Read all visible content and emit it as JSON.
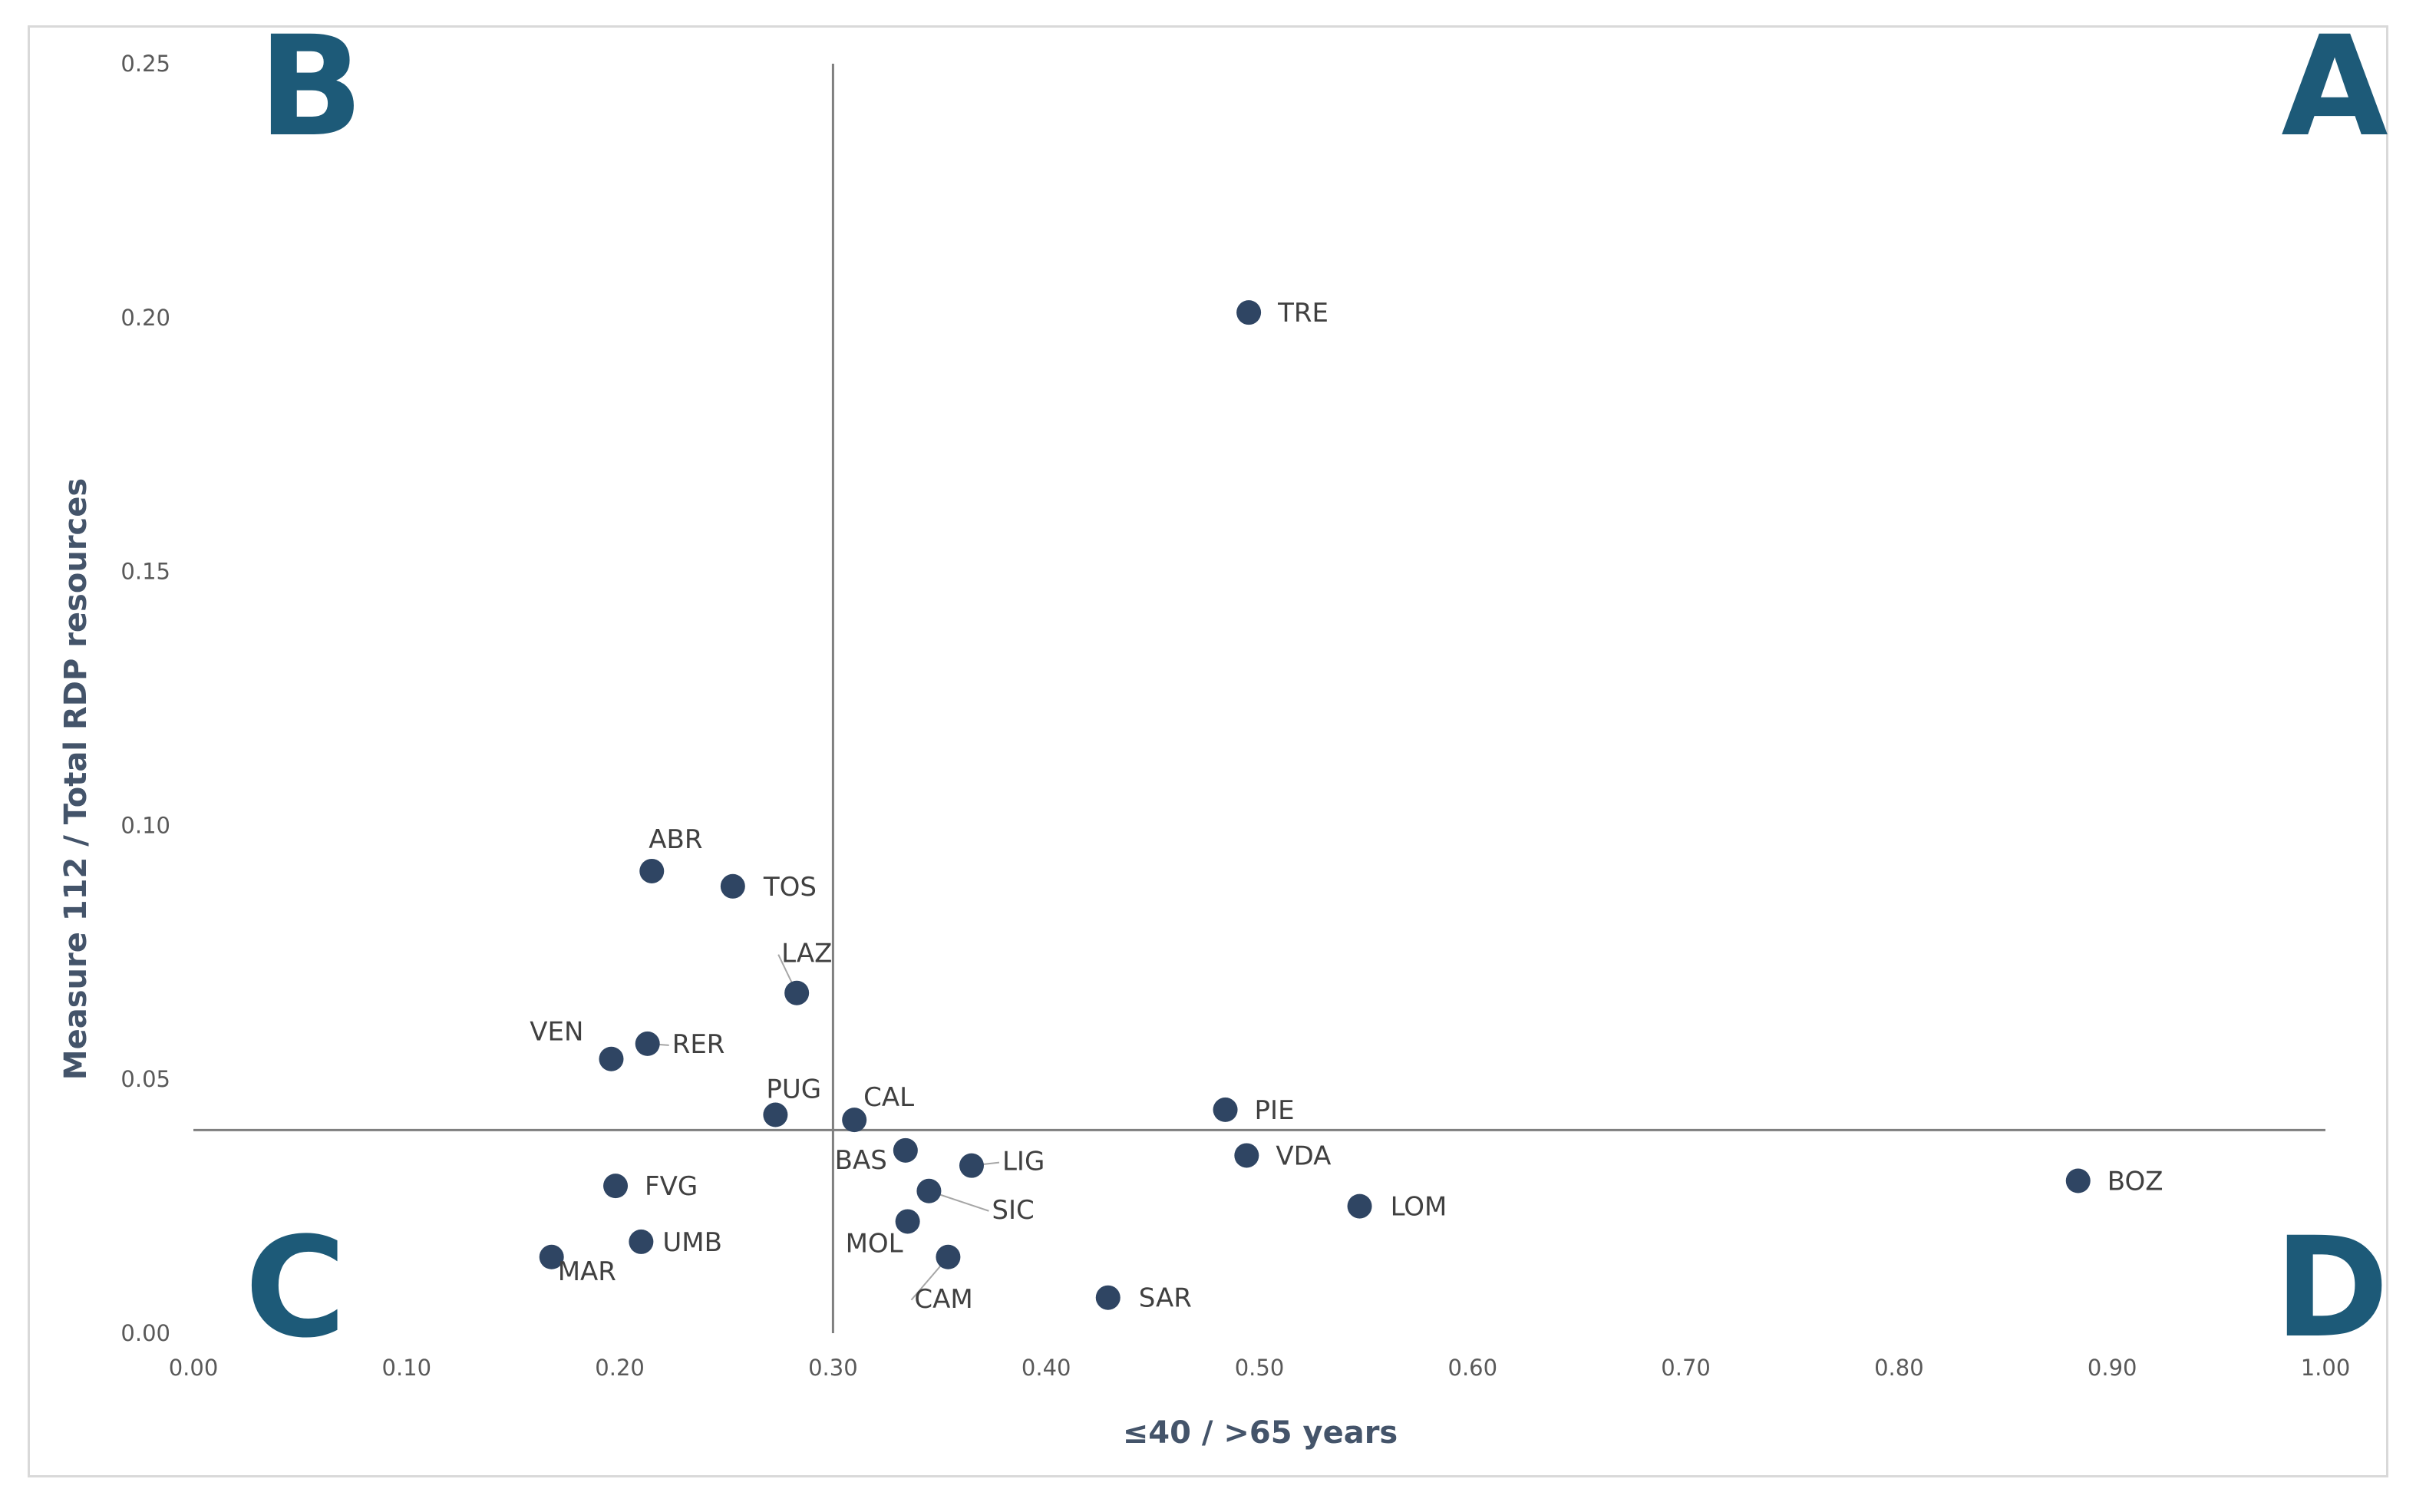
{
  "colors": {
    "point": "#2f4563",
    "divider": "#7f7f7f",
    "quadrant_letter": "#1d5a78",
    "axis_title": "#44546a",
    "tick": "#595959",
    "label": "#404040"
  },
  "chart_data": {
    "type": "scatter",
    "title": "",
    "xlabel": "≤40 / >65 years",
    "ylabel": "Measure 112 / Total RDP resources",
    "xlim": [
      0.0,
      1.0
    ],
    "ylim": [
      0.0,
      0.25
    ],
    "x_ticks": [
      "0.00",
      "0.10",
      "0.20",
      "0.30",
      "0.40",
      "0.50",
      "0.60",
      "0.70",
      "0.80",
      "0.90",
      "1.00"
    ],
    "y_ticks": [
      "0.00",
      "0.05",
      "0.10",
      "0.15",
      "0.20",
      "0.25"
    ],
    "grid": false,
    "legend": "none",
    "reference_lines": {
      "x": 0.3,
      "y": 0.04
    },
    "quadrant_labels": {
      "top_left": "B",
      "top_right": "A",
      "bottom_left": "C",
      "bottom_right": "D"
    },
    "points": [
      {
        "label": "TRE",
        "x": 0.495,
        "y": 0.201
      },
      {
        "label": "ABR",
        "x": 0.215,
        "y": 0.091
      },
      {
        "label": "TOS",
        "x": 0.253,
        "y": 0.088
      },
      {
        "label": "LAZ",
        "x": 0.283,
        "y": 0.067
      },
      {
        "label": "VEN",
        "x": 0.196,
        "y": 0.054
      },
      {
        "label": "RER",
        "x": 0.213,
        "y": 0.057
      },
      {
        "label": "PUG",
        "x": 0.273,
        "y": 0.043
      },
      {
        "label": "CAL",
        "x": 0.31,
        "y": 0.042
      },
      {
        "label": "BAS",
        "x": 0.334,
        "y": 0.036
      },
      {
        "label": "LIG",
        "x": 0.365,
        "y": 0.033
      },
      {
        "label": "SIC",
        "x": 0.345,
        "y": 0.028
      },
      {
        "label": "MOL",
        "x": 0.335,
        "y": 0.022
      },
      {
        "label": "CAM",
        "x": 0.354,
        "y": 0.015
      },
      {
        "label": "SAR",
        "x": 0.429,
        "y": 0.007
      },
      {
        "label": "FVG",
        "x": 0.198,
        "y": 0.029
      },
      {
        "label": "UMB",
        "x": 0.21,
        "y": 0.018
      },
      {
        "label": "MAR",
        "x": 0.168,
        "y": 0.015
      },
      {
        "label": "PIE",
        "x": 0.484,
        "y": 0.044
      },
      {
        "label": "VDA",
        "x": 0.494,
        "y": 0.035
      },
      {
        "label": "LOM",
        "x": 0.547,
        "y": 0.025
      },
      {
        "label": "BOZ",
        "x": 0.884,
        "y": 0.03
      }
    ]
  }
}
